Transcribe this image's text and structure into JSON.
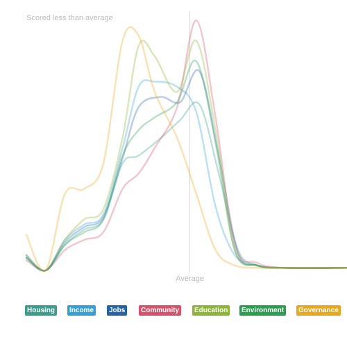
{
  "chart_data": {
    "type": "line",
    "annotations": {
      "top_left": "Scored less than average",
      "average": "Average"
    },
    "x_range": [
      0,
      10
    ],
    "average_x": 5.1,
    "series": [
      {
        "name": "Housing",
        "color": "#3a9e8f",
        "x": [
          0,
          0.6,
          1.2,
          1.8,
          2.4,
          3.0,
          3.5,
          4.2,
          4.8,
          5.4,
          6.0,
          6.6,
          7.2,
          8.0,
          10
        ],
        "y": [
          5,
          0,
          10,
          16,
          20,
          42,
          45,
          52,
          59,
          65,
          38,
          8,
          2,
          1,
          1
        ]
      },
      {
        "name": "Income",
        "color": "#34a1d6",
        "x": [
          0,
          0.6,
          1.2,
          1.8,
          2.4,
          3.0,
          3.5,
          4.0,
          4.7,
          5.3,
          5.9,
          6.5,
          7.2,
          8.0,
          10
        ],
        "y": [
          5,
          0,
          12,
          18,
          22,
          48,
          72,
          74,
          72,
          62,
          25,
          6,
          2,
          1,
          1
        ]
      },
      {
        "name": "Jobs",
        "color": "#2463a8",
        "x": [
          0,
          0.6,
          1.2,
          1.8,
          2.4,
          3.0,
          3.5,
          4.2,
          4.8,
          5.4,
          6.0,
          6.6,
          7.2,
          8.0,
          10
        ],
        "y": [
          6,
          0,
          11,
          17,
          21,
          44,
          64,
          68,
          66,
          78,
          45,
          7,
          2,
          1,
          1
        ]
      },
      {
        "name": "Community",
        "color": "#d9506a",
        "x": [
          0,
          0.6,
          1.2,
          1.8,
          2.4,
          3.0,
          3.5,
          4.0,
          4.7,
          5.3,
          5.9,
          6.5,
          7.2,
          8.0,
          10
        ],
        "y": [
          4,
          0,
          8,
          12,
          15,
          32,
          38,
          48,
          64,
          98,
          60,
          10,
          3,
          1,
          1
        ]
      },
      {
        "name": "Education",
        "color": "#8bb533",
        "x": [
          0,
          0.6,
          1.2,
          1.8,
          2.4,
          3.0,
          3.5,
          4.0,
          4.7,
          5.3,
          5.9,
          6.5,
          7.2,
          8.0,
          10
        ],
        "y": [
          6,
          0,
          12,
          20,
          24,
          52,
          88,
          84,
          70,
          90,
          55,
          8,
          2,
          1,
          1
        ]
      },
      {
        "name": "Environment",
        "color": "#27a04e",
        "x": [
          0,
          0.6,
          1.2,
          1.8,
          2.4,
          3.0,
          3.5,
          4.0,
          4.7,
          5.3,
          5.9,
          6.5,
          7.2,
          8.0,
          10
        ],
        "y": [
          5,
          0,
          10,
          15,
          20,
          45,
          55,
          60,
          66,
          82,
          50,
          8,
          2,
          1,
          1
        ]
      },
      {
        "name": "Governance",
        "color": "#e9a81a",
        "x": [
          0,
          0.6,
          1.2,
          1.8,
          2.4,
          3.0,
          3.5,
          4.0,
          4.7,
          5.3,
          5.9,
          6.5,
          7.2,
          8.0,
          10
        ],
        "y": [
          14,
          0,
          30,
          32,
          42,
          90,
          92,
          70,
          52,
          30,
          8,
          2,
          1,
          1,
          1
        ]
      }
    ]
  }
}
